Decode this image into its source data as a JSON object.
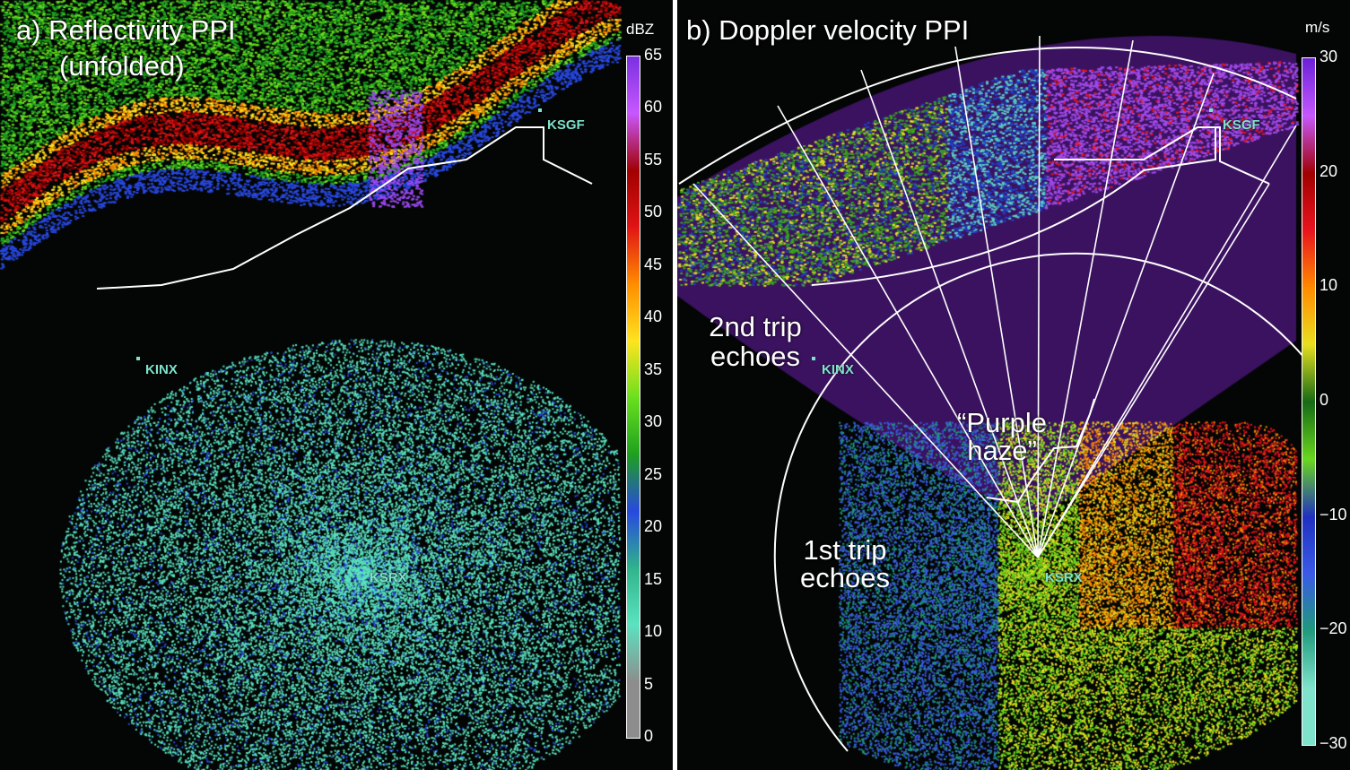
{
  "panel_a": {
    "title_line1": "a) Reflectivity PPI",
    "title_line2": "(unfolded)",
    "sites": {
      "ksgf": "KSGF",
      "kinx": "KINX",
      "ksrx": "KSRX"
    },
    "colorbar": {
      "unit": "dBZ",
      "ticks": [
        "65",
        "60",
        "55",
        "50",
        "45",
        "40",
        "35",
        "30",
        "25",
        "20",
        "15",
        "10",
        "5",
        "0"
      ],
      "range": [
        0,
        65
      ]
    }
  },
  "panel_b": {
    "title": "b) Doppler velocity PPI",
    "sites": {
      "ksgf": "KSGF",
      "kinx": "KINX",
      "ksrx": "KSRX"
    },
    "annotations": {
      "second_trip_line1": "2nd trip",
      "second_trip_line2": "echoes",
      "purple_haze_line1": "“Purple",
      "purple_haze_line2": "haze”",
      "first_trip_line1": "1st trip",
      "first_trip_line2": "echoes"
    },
    "colorbar": {
      "unit": "m/s",
      "ticks": [
        "30",
        "20",
        "10",
        "0",
        "−10",
        "−20",
        "−30"
      ],
      "range": [
        -30,
        30
      ]
    }
  },
  "colors": {
    "reflectivity": [
      "#8d8d8d",
      "#5be3c0",
      "#2fb38a",
      "#2848e0",
      "#1ea11e",
      "#6be01e",
      "#ffe41e",
      "#ff8c00",
      "#e01414",
      "#a00000",
      "#c858ff",
      "#7a30e0"
    ],
    "velocity": [
      "#7fe3cc",
      "#1f9a7a",
      "#3a5ae6",
      "#2030c0",
      "#6ad81e",
      "#156915",
      "#e8e020",
      "#ff8a00",
      "#e8141e",
      "#a00000",
      "#c658ff",
      "#6a20d8"
    ],
    "purple_haze": "#3b1260"
  }
}
